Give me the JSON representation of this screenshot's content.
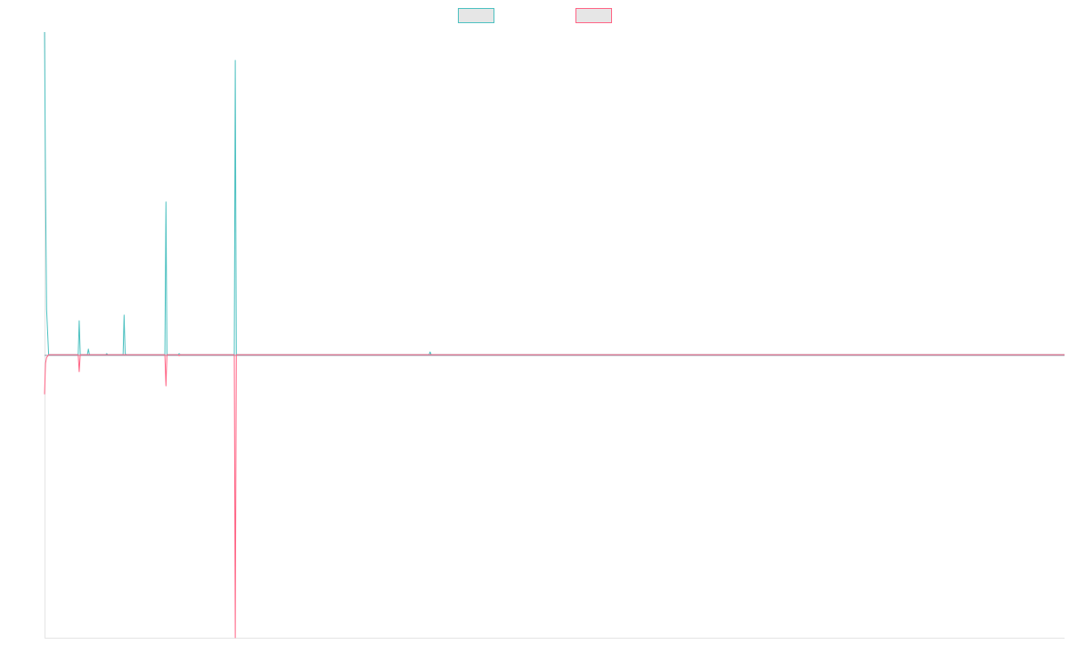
{
  "chart_data": {
    "type": "line",
    "title": "",
    "xlabel": "",
    "ylabel": "",
    "x_range": [
      0,
      1000
    ],
    "ylim": [
      -1.0,
      1.14
    ],
    "grid": false,
    "legend_position": "top-center",
    "series": [
      {
        "color": "#4bc0c0",
        "legend_fill": "#e6e6e6",
        "points": [
          [
            0,
            1.14
          ],
          [
            1,
            0.6
          ],
          [
            2,
            0.16
          ],
          [
            4,
            0
          ],
          [
            33,
            0
          ],
          [
            34,
            0.12
          ],
          [
            35,
            0
          ],
          [
            42,
            0
          ],
          [
            43,
            0.02
          ],
          [
            44,
            0
          ],
          [
            60,
            0
          ],
          [
            61,
            0.004
          ],
          [
            62,
            0
          ],
          [
            77,
            0
          ],
          [
            78,
            0.14
          ],
          [
            79,
            0.004
          ],
          [
            80,
            0
          ],
          [
            118,
            0
          ],
          [
            119,
            0.54
          ],
          [
            120,
            0
          ],
          [
            131,
            0
          ],
          [
            132,
            0.004
          ],
          [
            133,
            0
          ],
          [
            186,
            0
          ],
          [
            187,
            1.04
          ],
          [
            188,
            0
          ],
          [
            377,
            0
          ],
          [
            378,
            0.01
          ],
          [
            379,
            0
          ],
          [
            1000,
            0
          ]
        ]
      },
      {
        "color": "#ff6384",
        "legend_fill": "#e6e6e6",
        "points": [
          [
            0,
            -0.14
          ],
          [
            1,
            -0.03
          ],
          [
            2,
            -0.01
          ],
          [
            4,
            0
          ],
          [
            33,
            0
          ],
          [
            34,
            -0.06
          ],
          [
            35,
            0
          ],
          [
            118,
            0
          ],
          [
            119,
            -0.11
          ],
          [
            120,
            0
          ],
          [
            131,
            0
          ],
          [
            132,
            -0.004
          ],
          [
            133,
            0
          ],
          [
            186,
            0
          ],
          [
            187,
            -1.0
          ],
          [
            188,
            0
          ],
          [
            1000,
            0
          ]
        ]
      }
    ]
  }
}
